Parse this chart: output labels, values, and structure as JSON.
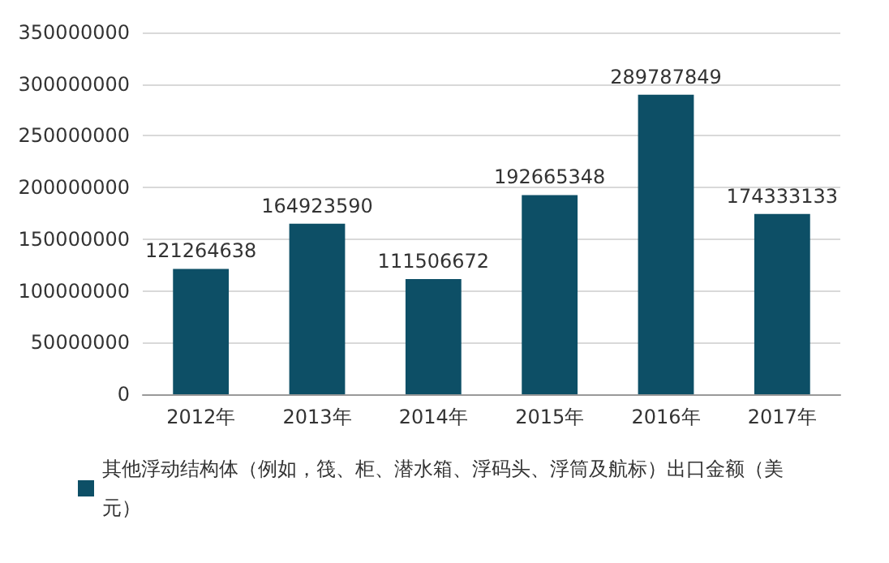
{
  "chart_data": {
    "type": "bar",
    "categories": [
      "2012年",
      "2013年",
      "2014年",
      "2015年",
      "2016年",
      "2017年"
    ],
    "series": [
      {
        "name": "其他浮动结构体（例如，筏、柜、潜水箱、浮码头、浮筒及航标）出口金额（美元）",
        "color": "#0d4f66",
        "values": [
          121264638,
          164923590,
          111506672,
          192665348,
          289787849,
          174333133
        ]
      }
    ],
    "ylim": [
      0,
      350000000
    ],
    "yticks": [
      0,
      50000000,
      100000000,
      150000000,
      200000000,
      250000000,
      300000000,
      350000000
    ],
    "grid": "y",
    "legend": "bottom",
    "data_labels": true
  }
}
